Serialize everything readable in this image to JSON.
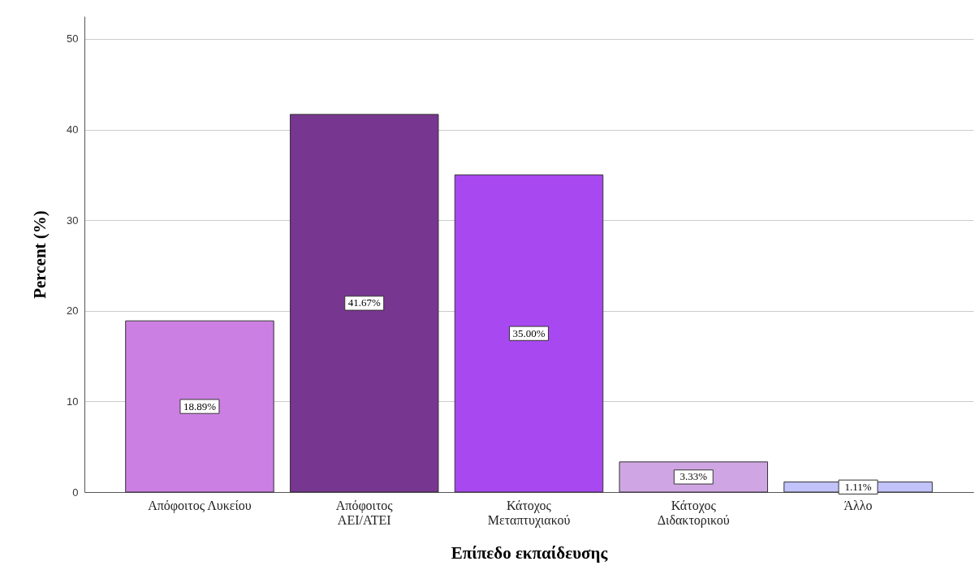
{
  "chart_data": {
    "type": "bar",
    "xlabel": "Επίπεδο εκπαίδευσης",
    "ylabel": "Percent (%)",
    "categories": [
      "Απόφοιτος Λυκείου",
      "Απόφοιτος ΑΕΙ/ΑΤΕΙ",
      "Κάτοχος Μεταπτυχιακού",
      "Κάτοχος Διδακτορικού",
      "Άλλο"
    ],
    "values": [
      18.89,
      41.67,
      35.0,
      3.33,
      1.11
    ],
    "colors": [
      "#cc7fe3",
      "#77368f",
      "#a748f0",
      "#cfa6e3",
      "#c3c3fb"
    ],
    "value_labels": [
      "18.89%",
      "41.67%",
      "35.00%",
      "3.33%",
      "1.11%"
    ],
    "ylim": [
      0,
      52.5
    ],
    "yticks": [
      0,
      10,
      20,
      30,
      40,
      50
    ],
    "grid": "y"
  }
}
